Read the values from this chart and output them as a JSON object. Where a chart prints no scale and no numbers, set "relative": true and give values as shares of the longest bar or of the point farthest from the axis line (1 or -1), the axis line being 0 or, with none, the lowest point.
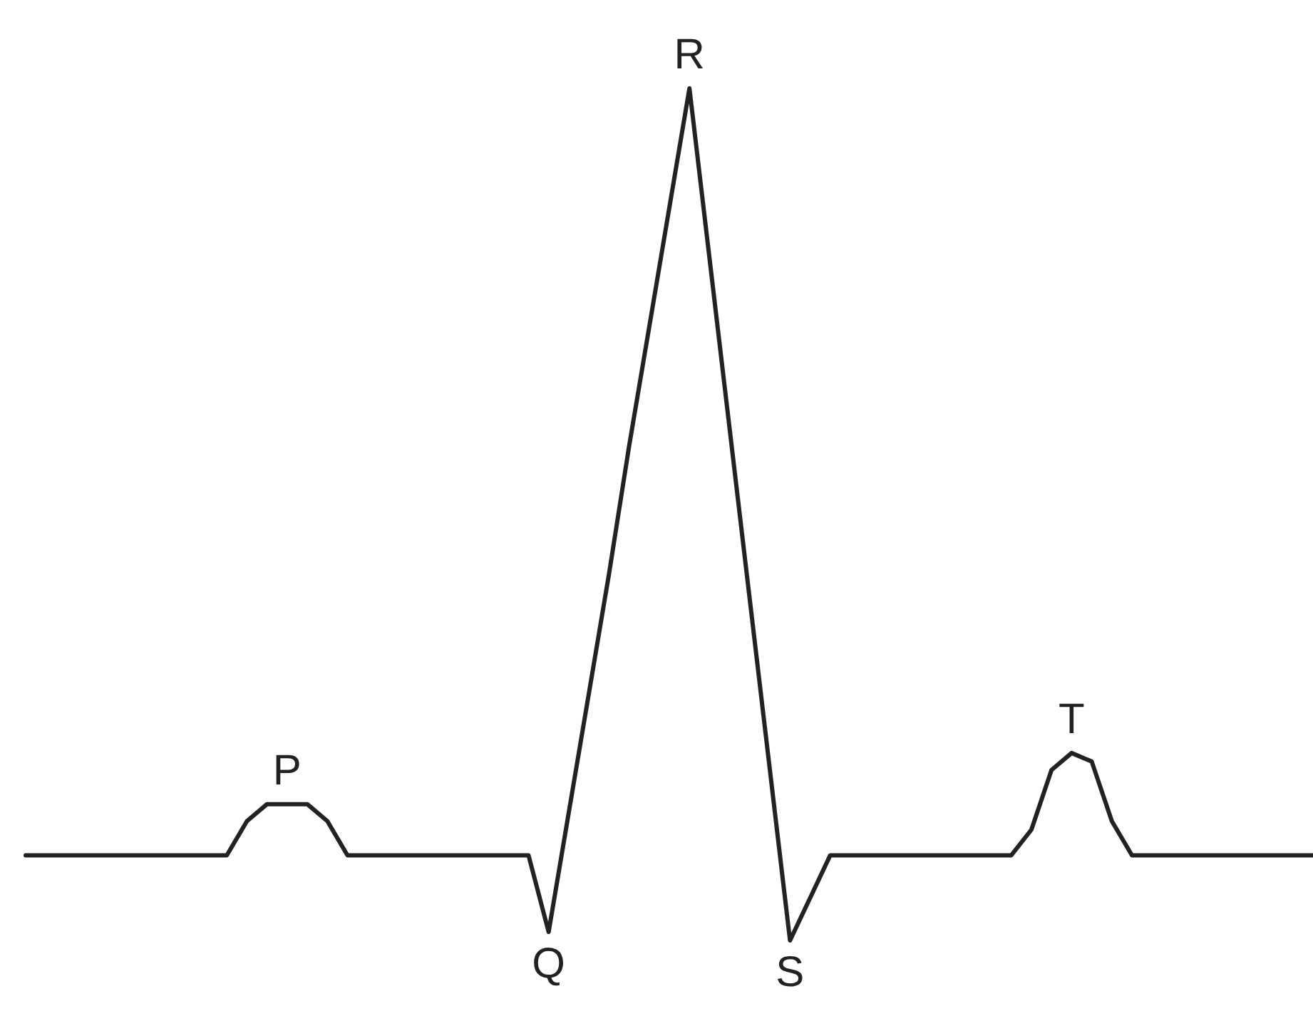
{
  "chart_data": {
    "type": "line",
    "relative": true,
    "categories": [
      null,
      null,
      null,
      null,
      null,
      null,
      null,
      null,
      null,
      null,
      null,
      null,
      null,
      null,
      null,
      null,
      null,
      null,
      null,
      null,
      null,
      null,
      null,
      null,
      null,
      null,
      null,
      null,
      null,
      null,
      null,
      null,
      null,
      null,
      null,
      null,
      null,
      null,
      null,
      null,
      null,
      null,
      null,
      null,
      null,
      null,
      null,
      null,
      null,
      null,
      null,
      null,
      null,
      null,
      null,
      null,
      null,
      null,
      null,
      null,
      null,
      null,
      null,
      null,
      null
    ],
    "series": [
      {
        "color": "#222222",
        "values": [
          0.1,
          0.1,
          0.1,
          0.1,
          0.1,
          0.1,
          0.1,
          0.1,
          0.1,
          0.1,
          0.1,
          0.14,
          0.16,
          0.16,
          0.16,
          0.14,
          0.1,
          0.1,
          0.1,
          0.1,
          0.1,
          0.1,
          0.1,
          0.1,
          0.1,
          0.1,
          0.01,
          0.15,
          0.29,
          0.43,
          0.58,
          0.72,
          0.86,
          1.0,
          0.8,
          0.6,
          0.4,
          0.2,
          0,
          0.05,
          0.1,
          0.1,
          0.1,
          0.1,
          0.1,
          0.1,
          0.1,
          0.1,
          0.1,
          0.1,
          0.13,
          0.2,
          0.22,
          0.21,
          0.14,
          0.1,
          0.1,
          0.1,
          0.1,
          0.1,
          0.1,
          0.1,
          0.1,
          0.1,
          0.1
        ]
      }
    ],
    "annotations": [
      "P",
      "Q",
      "R",
      "S",
      "T"
    ],
    "line_style": "solid"
  }
}
